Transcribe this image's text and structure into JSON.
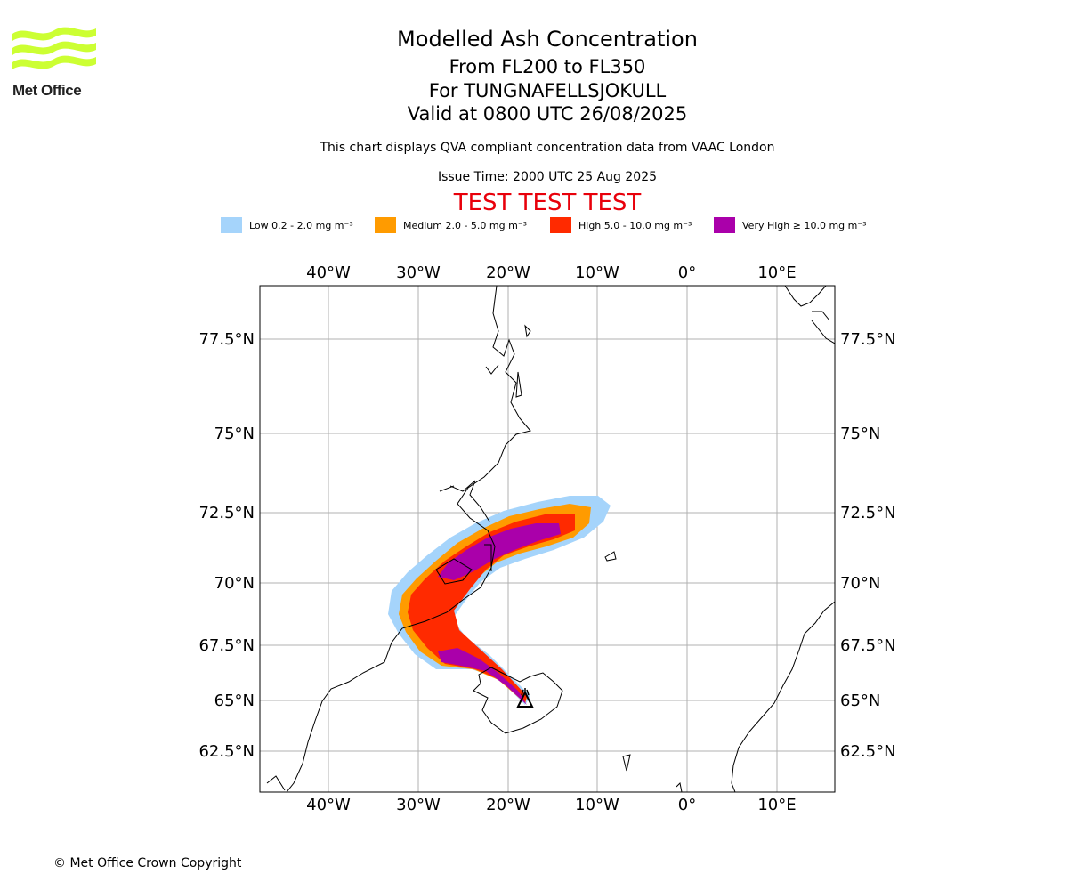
{
  "header": {
    "title": "Modelled Ash Concentration",
    "levels": "From FL200 to FL350",
    "volcano": "For TUNGNAFELLSJOKULL",
    "valid": "Valid at 0800 UTC 26/08/2025",
    "subtitle": "This chart displays QVA compliant concentration data from VAAC London",
    "issue": "Issue Time: 2000 UTC 25 Aug 2025",
    "test_banner": "TEST TEST TEST"
  },
  "logo": {
    "name": "Met Office",
    "color": "#ccff33"
  },
  "legend": [
    {
      "label": "Low 0.2 - 2.0 mg m⁻³",
      "color": "#a5d4fb"
    },
    {
      "label": "Medium 2.0 - 5.0 mg m⁻³",
      "color": "#ff9b00"
    },
    {
      "label": "High 5.0 - 10.0 mg m⁻³",
      "color": "#ff2a00"
    },
    {
      "label": "Very High  ≥  10.0 mg m⁻³",
      "color": "#aa00aa"
    }
  ],
  "map": {
    "lon_labels": [
      "40°W",
      "30°W",
      "20°W",
      "10°W",
      "0°",
      "10°E"
    ],
    "lat_labels": [
      "77.5°N",
      "75°N",
      "72.5°N",
      "70°N",
      "67.5°N",
      "65°N",
      "62.5°N"
    ],
    "volcano_marker": "volcano"
  },
  "footer": {
    "copyright": "© Met Office Crown Copyright"
  }
}
